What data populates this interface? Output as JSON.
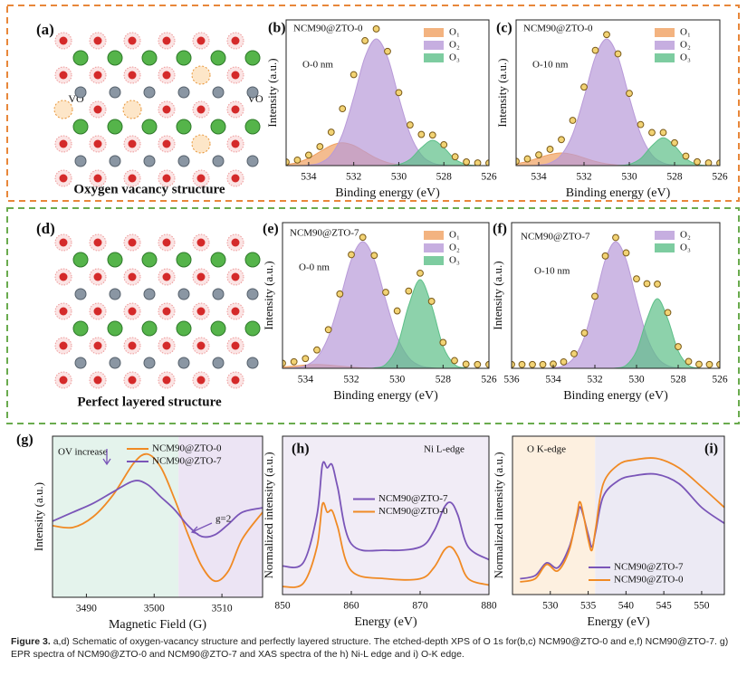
{
  "schematics": [
    {
      "panel": "(a)",
      "title": "Oxygen vacancy structure",
      "labels": [
        "VO",
        "VO"
      ]
    },
    {
      "panel": "(d)",
      "title": "Perfect layered structure"
    }
  ],
  "chart_data": [
    {
      "type": "area",
      "panel": "(b)",
      "annotations": [
        "NCM90@ZTO-0",
        "O-0 nm"
      ],
      "x_label": "Binding energy (eV)",
      "y_label": "Intensity (a.u.)",
      "x": [
        535,
        534.5,
        534,
        533.5,
        533,
        532.5,
        532,
        531.5,
        531,
        530.5,
        530,
        529.5,
        529,
        528.5,
        528,
        527.5,
        527,
        526.5,
        526
      ],
      "xlim": [
        535,
        526
      ],
      "xticks": [
        534,
        532,
        530,
        528,
        526
      ],
      "ylim": [
        0,
        115
      ],
      "legend": "upper right",
      "series": [
        {
          "name": "O₁",
          "color": "#f0a060",
          "values": [
            0.8,
            2.4,
            5.9,
            10.9,
            15.9,
            18,
            15.9,
            10.9,
            5.9,
            2.4,
            0.8,
            0.2,
            0,
            0,
            0,
            0,
            0,
            0,
            0
          ]
        },
        {
          "name": "O₂",
          "color": "#b89ad8",
          "values": [
            0,
            0,
            0.4,
            2.1,
            8.5,
            24.9,
            53.9,
            85.7,
            100,
            85.7,
            53.9,
            24.9,
            8.5,
            2.1,
            0.4,
            0,
            0,
            0,
            0
          ]
        },
        {
          "name": "O₃",
          "color": "#5cbf88",
          "values": [
            0,
            0,
            0,
            0,
            0,
            0,
            0,
            0,
            0,
            0.1,
            0.9,
            5,
            14.1,
            20,
            14.1,
            5,
            0.9,
            0.1,
            0
          ]
        },
        {
          "color": "#f2d374",
          "markers": true,
          "values": [
            2.8,
            4.4,
            8.3,
            15,
            26.4,
            44.9,
            71.8,
            98.6,
            107.9,
            90.2,
            57.6,
            32.1,
            24.6,
            24.1,
            16.5,
            7,
            2.9,
            2.1,
            2
          ]
        }
      ]
    },
    {
      "type": "area",
      "panel": "(c)",
      "annotations": [
        "NCM90@ZTO-0",
        "O-10 nm"
      ],
      "x_label": "Binding energy (eV)",
      "y_label": "Intensity (a.u.)",
      "x": [
        535,
        534.5,
        534,
        533.5,
        533,
        532.5,
        532,
        531.5,
        531,
        530.5,
        530,
        529.5,
        529,
        528.5,
        528,
        527.5,
        527,
        526.5,
        526
      ],
      "xlim": [
        535,
        526
      ],
      "xticks": [
        534,
        532,
        530,
        528,
        526
      ],
      "ylim": [
        0,
        115
      ],
      "legend": "upper right",
      "series": [
        {
          "name": "O₁",
          "color": "#f0a060",
          "values": [
            1.4,
            3.3,
            6.1,
            8.8,
            10,
            8.8,
            6.1,
            3.3,
            1.4,
            0.4,
            0.1,
            0,
            0,
            0,
            0,
            0,
            0,
            0,
            0
          ]
        },
        {
          "name": "O₂",
          "color": "#b89ad8",
          "values": [
            0,
            0,
            0.4,
            2.1,
            8.5,
            24.9,
            53.9,
            85.7,
            100,
            85.7,
            53.9,
            24.9,
            8.5,
            2.1,
            0.4,
            0,
            0,
            0,
            0
          ]
        },
        {
          "name": "O₃",
          "color": "#5cbf88",
          "values": [
            0,
            0,
            0,
            0,
            0,
            0,
            0,
            0,
            0,
            0.1,
            1,
            5.5,
            15.6,
            22,
            15.6,
            5.5,
            1,
            0.1,
            0
          ]
        },
        {
          "color": "#f2d374",
          "markers": true,
          "values": [
            3.4,
            5.3,
            8.5,
            12.9,
            20.5,
            35.7,
            62,
            91,
            103.4,
            88.2,
            57,
            32.4,
            26.1,
            26.1,
            18,
            7.5,
            3,
            2.1,
            2
          ]
        }
      ]
    },
    {
      "type": "area",
      "panel": "(e)",
      "annotations": [
        "NCM90@ZTO-7",
        "O-0 nm"
      ],
      "x_label": "Binding energy (eV)",
      "y_label": "Intensity (a.u.)",
      "x": [
        535,
        534.5,
        534,
        533.5,
        533,
        532.5,
        532,
        531.5,
        531,
        530.5,
        530,
        529.5,
        529,
        528.5,
        528,
        527.5,
        527,
        526.5,
        526
      ],
      "xlim": [
        535,
        526
      ],
      "xticks": [
        534,
        532,
        530,
        528,
        526
      ],
      "ylim": [
        0,
        115
      ],
      "legend": "upper right",
      "series": [
        {
          "name": "O₁",
          "color": "#f0a060",
          "values": [
            1,
            1.8,
            2.6,
            3,
            2.6,
            1.8,
            1,
            0.4,
            0.1,
            0,
            0,
            0,
            0,
            0,
            0,
            0,
            0,
            0,
            0
          ]
        },
        {
          "name": "O₂",
          "color": "#b89ad8",
          "values": [
            0,
            0.4,
            2.1,
            8.5,
            24.9,
            53.9,
            85.7,
            100,
            85.7,
            53.9,
            24.9,
            8.5,
            2.1,
            0.4,
            0,
            0,
            0,
            0,
            0
          ]
        },
        {
          "name": "O₃",
          "color": "#5cbf88",
          "values": [
            0,
            0,
            0,
            0,
            0,
            0,
            0,
            0,
            0.3,
            3.1,
            17.4,
            49.5,
            70,
            49.5,
            17.4,
            3.1,
            0.3,
            0,
            0
          ]
        },
        {
          "color": "#f2d374",
          "markers": true,
          "values": [
            4,
            5.2,
            7.7,
            14.5,
            30.5,
            58.7,
            89.7,
            103.4,
            89.1,
            60,
            45.3,
            61,
            75.1,
            52.9,
            20.4,
            6.1,
            3.3,
            3,
            3
          ]
        }
      ]
    },
    {
      "type": "area",
      "panel": "(f)",
      "annotations": [
        "NCM90@ZTO-7",
        "O-10 nm"
      ],
      "x_label": "Binding energy (eV)",
      "y_label": "Intensity (a.u.)",
      "x": [
        536,
        535.5,
        535,
        534.5,
        534,
        533.5,
        533,
        532.5,
        532,
        531.5,
        531,
        530.5,
        530,
        529.5,
        529,
        528.5,
        528,
        527.5,
        527,
        526.5,
        526
      ],
      "xlim": [
        536,
        526
      ],
      "xticks": [
        536,
        534,
        532,
        530,
        528,
        526
      ],
      "ylim": [
        0,
        115
      ],
      "legend": "upper right",
      "series": [
        {
          "name": "O₂",
          "color": "#b89ad8",
          "values": [
            0,
            0,
            0,
            0,
            0.4,
            2.1,
            8.5,
            24.9,
            53.9,
            85.7,
            100,
            85.7,
            53.9,
            24.9,
            8.5,
            2.1,
            0.4,
            0,
            0,
            0,
            0
          ]
        },
        {
          "name": "O₃",
          "color": "#5cbf88",
          "values": [
            0,
            0,
            0,
            0,
            0,
            0,
            0,
            0,
            0,
            0,
            0.2,
            2.4,
            13.7,
            38.9,
            55,
            38.9,
            13.7,
            2.4,
            0.2,
            0,
            0
          ]
        },
        {
          "color": "#f2d374",
          "markers": true,
          "values": [
            3,
            3,
            3,
            3,
            3.4,
            5.1,
            11.5,
            27.9,
            56.9,
            88.7,
            103.2,
            91.1,
            70.6,
            66.8,
            66.5,
            44,
            17.1,
            5.4,
            3.2,
            3,
            3
          ]
        }
      ]
    },
    {
      "type": "line",
      "panel": "(g)",
      "annotations": [
        "OV increase",
        "g=2"
      ],
      "x_label": "Magnetic Field (G)",
      "y_label": "Intensity (a.u.)",
      "x": [
        3485,
        3488,
        3491,
        3494,
        3497,
        3499,
        3501,
        3503,
        3505,
        3507,
        3509,
        3511,
        3513,
        3516
      ],
      "xlim": [
        3485,
        3516
      ],
      "xticks": [
        3490,
        3500,
        3510
      ],
      "ylim": [
        -90,
        90
      ],
      "legend": "upper right",
      "series": [
        {
          "name": "NCM90@ZTO-0",
          "color": "#f08a24",
          "values": [
            -10,
            -12,
            0,
            25,
            60,
            70,
            55,
            20,
            -20,
            -55,
            -72,
            -60,
            -25,
            5
          ]
        },
        {
          "name": "NCM90@ZTO-7",
          "color": "#7a55b8",
          "values": [
            -5,
            5,
            15,
            28,
            40,
            36,
            22,
            8,
            -10,
            -22,
            -20,
            -8,
            5,
            10
          ]
        }
      ]
    },
    {
      "type": "line",
      "panel": "(h)",
      "annotations": [
        "Ni L-edge"
      ],
      "x_label": "Energy (eV)",
      "y_label": "Normalized intensity (a.u.)",
      "x": [
        850,
        853,
        855,
        855.8,
        856.5,
        857.2,
        858,
        860,
        865,
        870,
        872,
        873.5,
        874.5,
        875.5,
        877,
        880
      ],
      "xlim": [
        850,
        880
      ],
      "xticks": [
        850,
        860,
        870,
        880
      ],
      "ylim": [
        0,
        100
      ],
      "legend": "center right",
      "series": [
        {
          "name": "NCM90@ZTO-7",
          "color": "#7a55b8",
          "values": [
            18,
            20,
            50,
            82,
            80,
            82,
            68,
            32,
            28,
            30,
            40,
            55,
            58,
            50,
            30,
            22
          ]
        },
        {
          "name": "NCM90@ZTO-0",
          "color": "#f08a24",
          "values": [
            5,
            7,
            30,
            57,
            52,
            53,
            43,
            15,
            10,
            10,
            17,
            28,
            30,
            24,
            10,
            6
          ]
        }
      ]
    },
    {
      "type": "line",
      "panel": "(i)",
      "annotations": [
        "O K-edge"
      ],
      "x_label": "Energy (eV)",
      "y_label": "Normalized intensity (a.u.)",
      "x": [
        526,
        528,
        529.5,
        531,
        532.5,
        533.5,
        534,
        535,
        535.5,
        536,
        537,
        539,
        541,
        544,
        547,
        550,
        553
      ],
      "xlim": [
        525,
        553
      ],
      "xticks": [
        530,
        535,
        540,
        545,
        550
      ],
      "ylim": [
        0,
        100
      ],
      "legend": "lower right",
      "series": [
        {
          "name": "NCM90@ZTO-7",
          "color": "#7a55b8",
          "values": [
            10,
            12,
            20,
            17,
            30,
            48,
            55,
            38,
            30,
            40,
            62,
            72,
            75,
            76,
            70,
            55,
            45
          ]
        },
        {
          "name": "NCM90@ZTO-0",
          "color": "#f08a24",
          "values": [
            8,
            10,
            19,
            15,
            28,
            50,
            58,
            35,
            28,
            42,
            70,
            82,
            85,
            86,
            80,
            68,
            55
          ]
        }
      ]
    }
  ],
  "caption": {
    "label": "Figure 3.",
    "text": "a,d) Schematic of oxygen-vacancy structure and perfectly layered structure. The etched-depth XPS of O 1s for(b,c) NCM90@ZTO-0 and e,f) NCM90@ZTO-7. g) EPR spectra of NCM90@ZTO-0 and NCM90@ZTO-7 and XAS spectra of the h) Ni-L edge and i) O-K edge."
  }
}
